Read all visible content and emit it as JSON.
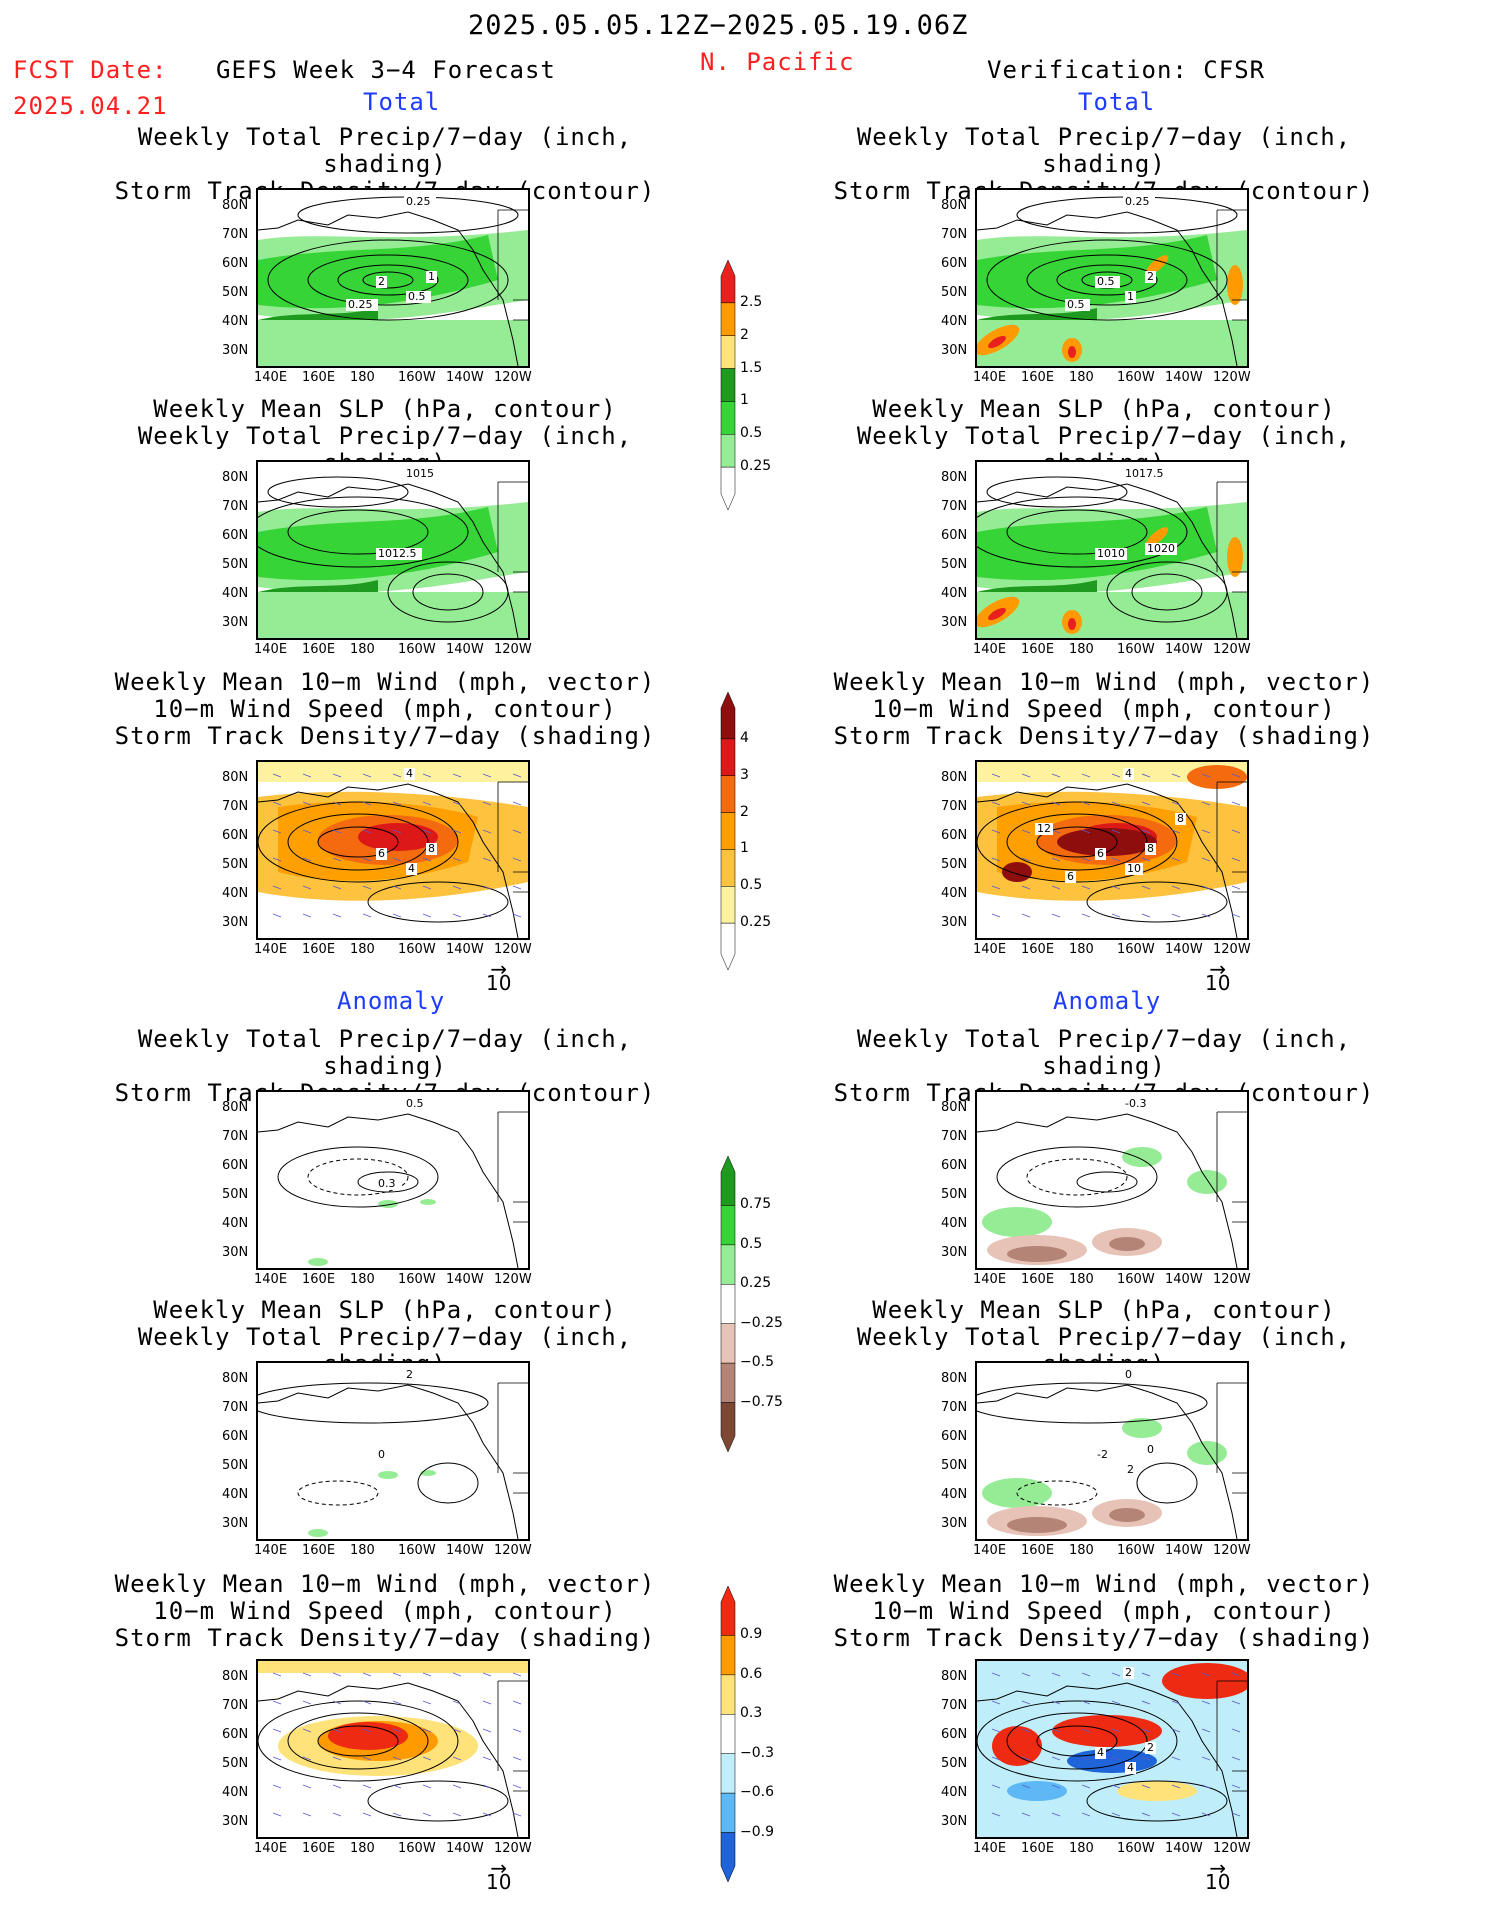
{
  "header": {
    "date_range": "2025.05.05.12Z−2025.05.19.06Z",
    "fcst_label": "FCST Date:",
    "fcst_date": "2025.04.21",
    "model": "GEFS Week 3−4 Forecast",
    "region": "N. Pacific",
    "verification": "Verification: CFSR"
  },
  "sections": {
    "total": "Total",
    "anomaly": "Anomaly"
  },
  "titles": {
    "precip_storm": [
      "Weekly Total Precip/7−day (inch, shading)",
      "Storm Track Density/7−day (contour)"
    ],
    "slp_precip": [
      "Weekly Mean SLP (hPa, contour)",
      "Weekly Total Precip/7−day (inch, shading)"
    ],
    "wind_storm": [
      "Weekly Mean 10−m Wind (mph, vector)",
      "10−m Wind Speed (mph, contour)",
      "Storm Track Density/7−day (shading)"
    ]
  },
  "axes": {
    "lat_ticks": [
      "80N",
      "70N",
      "60N",
      "50N",
      "40N",
      "30N"
    ],
    "lon_ticks": [
      "140E",
      "160E",
      "180",
      "160W",
      "140W",
      "120W"
    ]
  },
  "vector_reference": "10",
  "colorbars": {
    "total_precip": {
      "labels": [
        "2.5",
        "2",
        "1.5",
        "1",
        "0.5",
        "0.25"
      ],
      "colors": [
        "#e8201e",
        "#ff9b00",
        "#ffe37a",
        "#1e9a1e",
        "#37d437",
        "#95ec95",
        "#ffffff"
      ]
    },
    "total_storm": {
      "labels": [
        "4",
        "3",
        "2",
        "1",
        "0.5",
        "0.25"
      ],
      "colors": [
        "#8e0e0e",
        "#dd1818",
        "#f36a0f",
        "#ff9f00",
        "#fdc23e",
        "#fff29e",
        "#ffffff"
      ]
    },
    "anom_precip": {
      "labels": [
        "0.75",
        "0.5",
        "0.25",
        "−0.25",
        "−0.5",
        "−0.75"
      ],
      "colors": [
        "#1e9a1e",
        "#37d437",
        "#95ec95",
        "#ffffff",
        "#e7c3b7",
        "#b48577",
        "#7c4834"
      ]
    },
    "anom_storm": {
      "labels": [
        "0.9",
        "0.6",
        "0.3",
        "−0.3",
        "−0.6",
        "−0.9"
      ],
      "colors": [
        "#ee2a12",
        "#ff9b00",
        "#ffe27a",
        "#ffffff",
        "#bfeefa",
        "#5db8f5",
        "#1f64d8"
      ]
    }
  },
  "contour_labels": {
    "p1": [
      "0.25",
      "2",
      "1",
      "0.5",
      "0.25"
    ],
    "p2": [
      "1015",
      "1012.5"
    ],
    "p3": [
      "4",
      "6",
      "8",
      "4"
    ],
    "p4": [
      "0.25",
      "0.5",
      "2",
      "1",
      "0.5"
    ],
    "p5": [
      "1017.5",
      "1010",
      "1020"
    ],
    "p6": [
      "4",
      "6",
      "8",
      "10",
      "6",
      "12",
      "8"
    ],
    "p7": [
      "0.5",
      "0.3"
    ],
    "p8": [
      "2",
      "0"
    ],
    "p9": [],
    "p10": [
      "-0.3"
    ],
    "p11": [
      "0",
      "-2",
      "0",
      "2"
    ],
    "p12": [
      "2",
      "4",
      "2",
      "4"
    ]
  },
  "accent_colors": {
    "red": "#ff2020",
    "blue": "#1e3cff"
  }
}
